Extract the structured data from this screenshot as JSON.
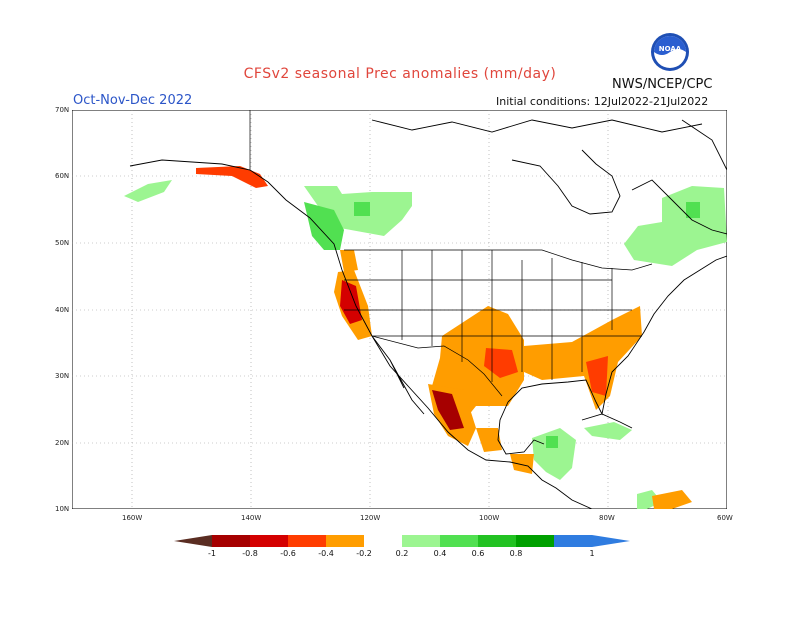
{
  "header": {
    "title": "CFSv2 seasonal Prec anomalies (mm/day)",
    "period": "Oct-Nov-Dec 2022",
    "initial_conditions": "Initial conditions: 12Jul2022-21Jul2022",
    "agency": "NWS/NCEP/CPC",
    "logo_text": "NOAA"
  },
  "map": {
    "lat_labels": [
      "70N",
      "60N",
      "50N",
      "40N",
      "30N",
      "20N",
      "10N"
    ],
    "lon_labels": [
      "160W",
      "140W",
      "120W",
      "100W",
      "80W",
      "60W"
    ],
    "extent": {
      "lon": [
        -170,
        -60
      ],
      "lat": [
        10,
        70
      ]
    },
    "grid": "dotted",
    "regions": [
      {
        "name": "california-coast",
        "anomaly": -0.8
      },
      {
        "name": "pacific-northwest-coast",
        "anomaly": -0.6
      },
      {
        "name": "southern-plains",
        "anomaly": -0.3
      },
      {
        "name": "southeast-us",
        "anomaly": -0.4
      },
      {
        "name": "florida",
        "anomaly": -0.5
      },
      {
        "name": "northwest-mexico",
        "anomaly": -0.8
      },
      {
        "name": "central-mexico",
        "anomaly": -0.3
      },
      {
        "name": "gulf-of-alaska-coast",
        "anomaly": -0.8
      },
      {
        "name": "western-canada",
        "anomaly": 0.3
      },
      {
        "name": "eastern-canada",
        "anomaly": 0.3
      },
      {
        "name": "central-america",
        "anomaly": 0.3
      },
      {
        "name": "caribbean",
        "anomaly": 0.3
      },
      {
        "name": "aleutians",
        "anomaly": 0.3
      },
      {
        "name": "british-columbia-coast",
        "anomaly": 0.4
      }
    ]
  },
  "legend": {
    "labels": [
      "-1",
      "-0.8",
      "-0.6",
      "-0.4",
      "-0.2",
      "0.2",
      "0.4",
      "0.6",
      "0.8",
      "1"
    ],
    "colors": [
      "#a60000",
      "#d40000",
      "#ff3c00",
      "#ff9d00",
      "#ffffff",
      "#9cf591",
      "#51e051",
      "#22c222",
      "#00a000"
    ],
    "low_arrow_color": "#5a2d22",
    "high_arrow_color": "#2f7ce0"
  }
}
